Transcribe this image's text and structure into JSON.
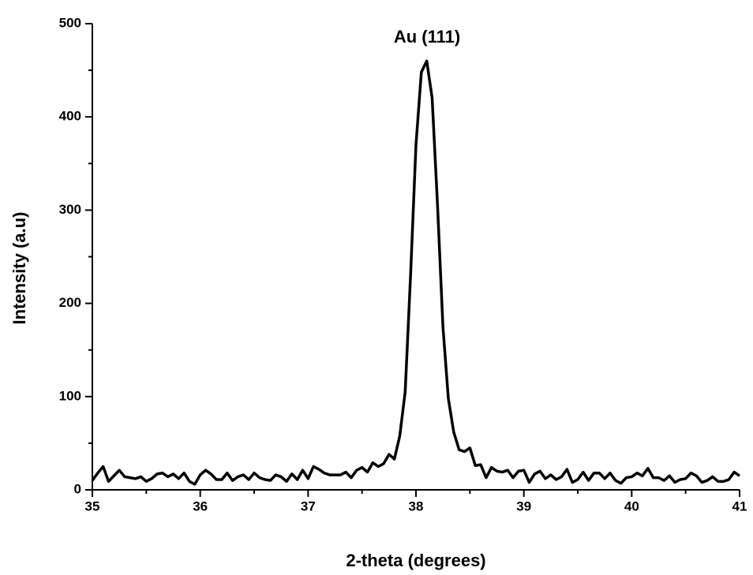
{
  "chart_data": {
    "type": "line",
    "xlabel": "2-theta (degrees)",
    "ylabel": "Intensity (a.u)",
    "annotation": "Au (111)",
    "x": [
      35.0,
      35.05,
      35.1,
      35.15,
      35.2,
      35.25,
      35.3,
      35.35,
      35.4,
      35.45,
      35.5,
      35.55,
      35.6,
      35.65,
      35.7,
      35.75,
      35.8,
      35.85,
      35.9,
      35.95,
      36.0,
      36.05,
      36.1,
      36.15,
      36.2,
      36.25,
      36.3,
      36.35,
      36.4,
      36.45,
      36.5,
      36.55,
      36.6,
      36.65,
      36.7,
      36.75,
      36.8,
      36.85,
      36.9,
      36.95,
      37.0,
      37.05,
      37.1,
      37.15,
      37.2,
      37.25,
      37.3,
      37.35,
      37.4,
      37.45,
      37.5,
      37.55,
      37.6,
      37.65,
      37.7,
      37.75,
      37.8,
      37.85,
      37.9,
      37.95,
      38.0,
      38.05,
      38.1,
      38.15,
      38.2,
      38.25,
      38.3,
      38.35,
      38.4,
      38.45,
      38.5,
      38.55,
      38.6,
      38.65,
      38.7,
      38.75,
      38.8,
      38.85,
      38.9,
      38.95,
      39.0,
      39.05,
      39.1,
      39.15,
      39.2,
      39.25,
      39.3,
      39.35,
      39.4,
      39.45,
      39.5,
      39.55,
      39.6,
      39.65,
      39.7,
      39.75,
      39.8,
      39.85,
      39.9,
      39.95,
      40.0,
      40.05,
      40.1,
      40.15,
      40.2,
      40.25,
      40.3,
      40.35,
      40.4,
      40.45,
      40.5,
      40.55,
      40.6,
      40.65,
      40.7,
      40.75,
      40.8,
      40.85,
      40.9,
      40.95,
      41.0
    ],
    "series": [
      {
        "color": "#000000",
        "values": [
          10,
          18,
          25,
          9,
          15,
          21,
          14,
          13,
          12,
          14,
          9,
          12,
          17,
          18,
          14,
          17,
          12,
          18,
          9,
          6,
          16,
          21,
          17,
          11,
          11,
          18,
          10,
          14,
          16,
          11,
          18,
          13,
          11,
          10,
          16,
          14,
          9,
          17,
          11,
          21,
          12,
          25,
          22,
          18,
          16,
          16,
          16,
          19,
          13,
          21,
          24,
          19,
          29,
          25,
          28,
          38,
          33,
          58,
          105,
          230,
          370,
          448,
          460,
          420,
          305,
          175,
          98,
          62,
          43,
          41,
          45,
          26,
          27,
          13,
          24,
          20,
          19,
          21,
          13,
          20,
          21,
          8,
          17,
          20,
          12,
          16,
          11,
          14,
          22,
          8,
          11,
          19,
          10,
          18,
          18,
          12,
          18,
          10,
          7,
          13,
          14,
          18,
          15,
          23,
          13,
          13,
          10,
          15,
          8,
          11,
          12,
          18,
          15,
          8,
          10,
          14,
          9,
          9,
          11,
          19,
          15
        ]
      }
    ],
    "xlim": [
      35,
      41
    ],
    "xticks": [
      35,
      36,
      37,
      38,
      39,
      40,
      41
    ],
    "xminorticks": [
      35.5,
      36.5,
      37.5,
      38.5,
      39.5,
      40.5
    ],
    "ylim": [
      0,
      500
    ],
    "yticks": [
      0,
      100,
      200,
      300,
      400,
      500
    ],
    "yminorticks": [
      50,
      150,
      250,
      350,
      450
    ]
  }
}
